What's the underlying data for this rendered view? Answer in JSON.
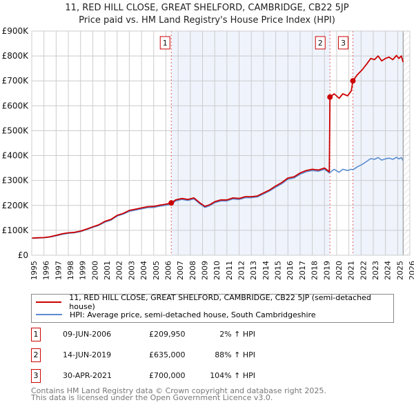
{
  "chart_data": {
    "type": "line",
    "title": "11, RED HILL CLOSE, GREAT SHELFORD, CAMBRIDGE, CB22 5JP",
    "subtitle": "Price paid vs. HM Land Registry's House Price Index (HPI)",
    "xlim": [
      1995,
      2026
    ],
    "ylim": [
      0,
      900000
    ],
    "x_ticks": [
      "1995",
      "1996",
      "1997",
      "1998",
      "1999",
      "2000",
      "2001",
      "2002",
      "2003",
      "2004",
      "2005",
      "2006",
      "2007",
      "2008",
      "2009",
      "2010",
      "2011",
      "2012",
      "2013",
      "2014",
      "2015",
      "2016",
      "2017",
      "2018",
      "2019",
      "2020",
      "2021",
      "2022",
      "2023",
      "2024",
      "2025",
      "2026"
    ],
    "y_ticks": [
      {
        "v": 0,
        "label": "£0"
      },
      {
        "v": 100000,
        "label": "£100K"
      },
      {
        "v": 200000,
        "label": "£200K"
      },
      {
        "v": 300000,
        "label": "£300K"
      },
      {
        "v": 400000,
        "label": "£400K"
      },
      {
        "v": 500000,
        "label": "£500K"
      },
      {
        "v": 600000,
        "label": "£600K"
      },
      {
        "v": 700000,
        "label": "£700K"
      },
      {
        "v": 800000,
        "label": "£800K"
      },
      {
        "v": 900000,
        "label": "£900K"
      }
    ],
    "grid": true,
    "colors": {
      "property": "#cc0000",
      "hpi": "#5b8bd0",
      "shade": "#eef3fc",
      "event": "#e06060"
    },
    "series": [
      {
        "name": "11, RED HILL CLOSE, GREAT SHELFORD, CAMBRIDGE, CB22 5JP (semi-detached house)",
        "key": "property",
        "x": [
          1995,
          1995.5,
          1996,
          1996.5,
          1997,
          1997.5,
          1998,
          1998.5,
          1999,
          1999.5,
          2000,
          2000.5,
          2001,
          2001.5,
          2002,
          2002.5,
          2003,
          2003.5,
          2004,
          2004.5,
          2005,
          2005.5,
          2006,
          2006.44,
          2006.8,
          2007.3,
          2007.8,
          2008.3,
          2008.8,
          2009.2,
          2009.6,
          2010,
          2010.5,
          2011,
          2011.5,
          2012,
          2012.5,
          2013,
          2013.5,
          2014,
          2014.5,
          2015,
          2015.5,
          2016,
          2016.5,
          2017,
          2017.5,
          2018,
          2018.5,
          2019,
          2019.4,
          2019.45,
          2019.8,
          2020.2,
          2020.5,
          2020.9,
          2021.2,
          2021.33,
          2021.7,
          2022.1,
          2022.5,
          2022.8,
          2023.1,
          2023.4,
          2023.7,
          2024,
          2024.3,
          2024.6,
          2024.9,
          2025.1,
          2025.3,
          2025.45
        ],
        "y": [
          69000,
          70000,
          71000,
          74000,
          80000,
          86000,
          90000,
          92000,
          97000,
          105000,
          114000,
          122000,
          136000,
          144000,
          160000,
          168000,
          180000,
          185000,
          190000,
          195000,
          196000,
          201000,
          205000,
          209950,
          222000,
          228000,
          224000,
          230000,
          210000,
          196000,
          203000,
          215000,
          222000,
          222000,
          230000,
          228000,
          235000,
          235000,
          238000,
          250000,
          262000,
          278000,
          292000,
          310000,
          315000,
          330000,
          340000,
          345000,
          342000,
          350000,
          335000,
          635000,
          648000,
          630000,
          648000,
          640000,
          660000,
          700000,
          725000,
          745000,
          770000,
          790000,
          785000,
          800000,
          780000,
          790000,
          795000,
          785000,
          802000,
          790000,
          800000,
          775000
        ]
      },
      {
        "name": "HPI: Average price, semi-detached house, South Cambridgeshire",
        "key": "hpi",
        "x": [
          1995,
          1995.5,
          1996,
          1996.5,
          1997,
          1997.5,
          1998,
          1998.5,
          1999,
          1999.5,
          2000,
          2000.5,
          2001,
          2001.5,
          2002,
          2002.5,
          2003,
          2003.5,
          2004,
          2004.5,
          2005,
          2005.5,
          2006,
          2006.44,
          2006.8,
          2007.3,
          2007.8,
          2008.3,
          2008.8,
          2009.2,
          2009.6,
          2010,
          2010.5,
          2011,
          2011.5,
          2012,
          2012.5,
          2013,
          2013.5,
          2014,
          2014.5,
          2015,
          2015.5,
          2016,
          2016.5,
          2017,
          2017.5,
          2018,
          2018.5,
          2019,
          2019.4,
          2019.8,
          2020.2,
          2020.5,
          2020.9,
          2021.2,
          2021.33,
          2021.7,
          2022.1,
          2022.5,
          2022.8,
          2023.1,
          2023.4,
          2023.7,
          2024,
          2024.3,
          2024.6,
          2024.9,
          2025.1,
          2025.3,
          2025.45
        ],
        "y": [
          68000,
          69000,
          70000,
          73000,
          78000,
          84000,
          88000,
          90000,
          95000,
          103000,
          112000,
          120000,
          133000,
          141000,
          157000,
          165000,
          176000,
          181000,
          186000,
          191000,
          192000,
          197000,
          201000,
          205000,
          218000,
          224000,
          220000,
          226000,
          206000,
          192000,
          199000,
          211000,
          218000,
          218000,
          226000,
          224000,
          231000,
          231000,
          234000,
          246000,
          258000,
          273000,
          287000,
          305000,
          310000,
          325000,
          335000,
          340000,
          337000,
          345000,
          330000,
          345000,
          333000,
          345000,
          340000,
          345000,
          343000,
          355000,
          365000,
          378000,
          388000,
          385000,
          392000,
          382000,
          387000,
          390000,
          385000,
          393000,
          387000,
          392000,
          380000
        ]
      }
    ],
    "events": [
      {
        "n": "1",
        "x": 2006.44,
        "date": "09-JUN-2006",
        "price": "£209,950",
        "y": 209950,
        "hpi": "2% ↑ HPI"
      },
      {
        "n": "2",
        "x": 2019.45,
        "date": "14-JUN-2019",
        "price": "£635,000",
        "y": 635000,
        "hpi": "88% ↑ HPI"
      },
      {
        "n": "3",
        "x": 2021.33,
        "date": "30-APR-2021",
        "price": "£700,000",
        "y": 700000,
        "hpi": "104% ↑ HPI"
      }
    ],
    "hatch_from": 2025.45
  },
  "footer": {
    "line1": "Contains HM Land Registry data © Crown copyright and database right 2025.",
    "line2": "This data is licensed under the Open Government Licence v3.0."
  }
}
